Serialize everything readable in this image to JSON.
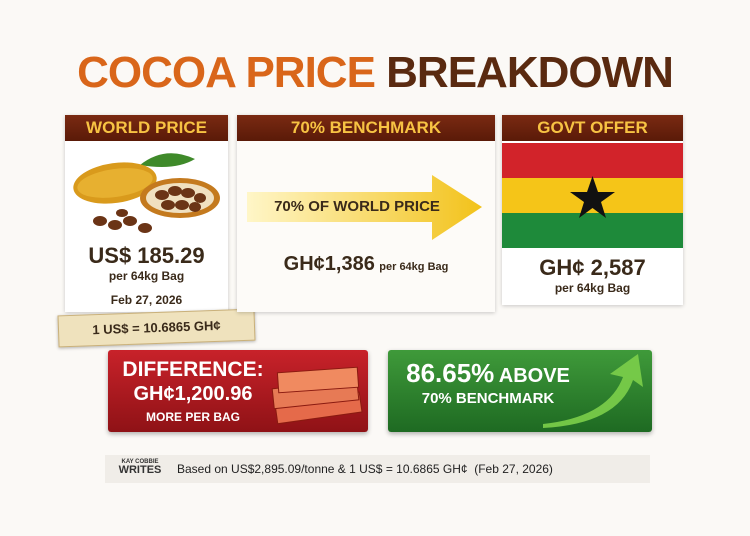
{
  "title": {
    "part1": "COCOA PRICE",
    "part2": "BREAKDOWN"
  },
  "world_price": {
    "header": "WORLD PRICE",
    "price": "US$ 185.29",
    "unit": "per 64kg Bag",
    "date": "Feb 27, 2026",
    "rate": "1 US$ = 10.6865 GH¢"
  },
  "benchmark": {
    "header": "70% BENCHMARK",
    "arrow": "70% OF WORLD PRICE",
    "price": "GH¢1,386",
    "unit": "per 64kg Bag"
  },
  "govt_offer": {
    "header": "GOVT OFFER",
    "price": "GH¢ 2,587",
    "unit": "per 64kg Bag"
  },
  "difference": {
    "label": "DIFFERENCE:",
    "amount": "GH¢1,200.96",
    "note": "MORE PER BAG"
  },
  "above": {
    "percent": "86.65%",
    "word": "ABOVE",
    "note": "70% BENCHMARK"
  },
  "footer": {
    "logo_top": "KAY COBBIE",
    "logo_bottom": "WRITES",
    "text": "Based on US$2,895.09/tonne & 1 US$ = 10.6865 GH¢  (Feb 27, 2026)"
  }
}
